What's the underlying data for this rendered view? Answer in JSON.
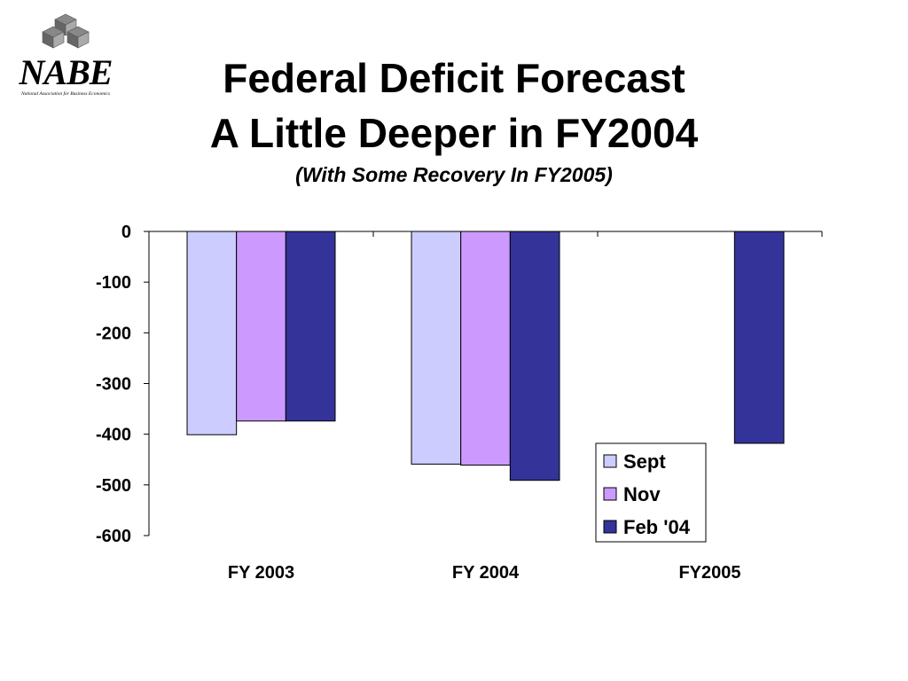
{
  "logo": {
    "text": "NABE",
    "subtitle": "National Association for Business Economics",
    "icon": "cube-stack-icon"
  },
  "header": {
    "title_line1": "Federal Deficit Forecast",
    "title_line2": "A Little Deeper in FY2004",
    "subtitle": "(With Some Recovery In FY2005)"
  },
  "chart_data": {
    "type": "bar",
    "categories": [
      "FY 2003",
      "FY 2004",
      "FY2005"
    ],
    "series": [
      {
        "name": "Sept",
        "color": "#ccccff",
        "values": [
          -401,
          -459,
          null
        ]
      },
      {
        "name": "Nov",
        "color": "#cc99ff",
        "values": [
          -374,
          -461,
          null
        ]
      },
      {
        "name": "Feb '04",
        "color": "#333399",
        "values": [
          -374,
          -491,
          -418
        ]
      }
    ],
    "ylim": [
      -600,
      0
    ],
    "yticks": [
      0,
      -100,
      -200,
      -300,
      -400,
      -500,
      -600
    ],
    "xlabel": "",
    "ylabel": "",
    "grid": false,
    "legend": "bottom-right"
  }
}
